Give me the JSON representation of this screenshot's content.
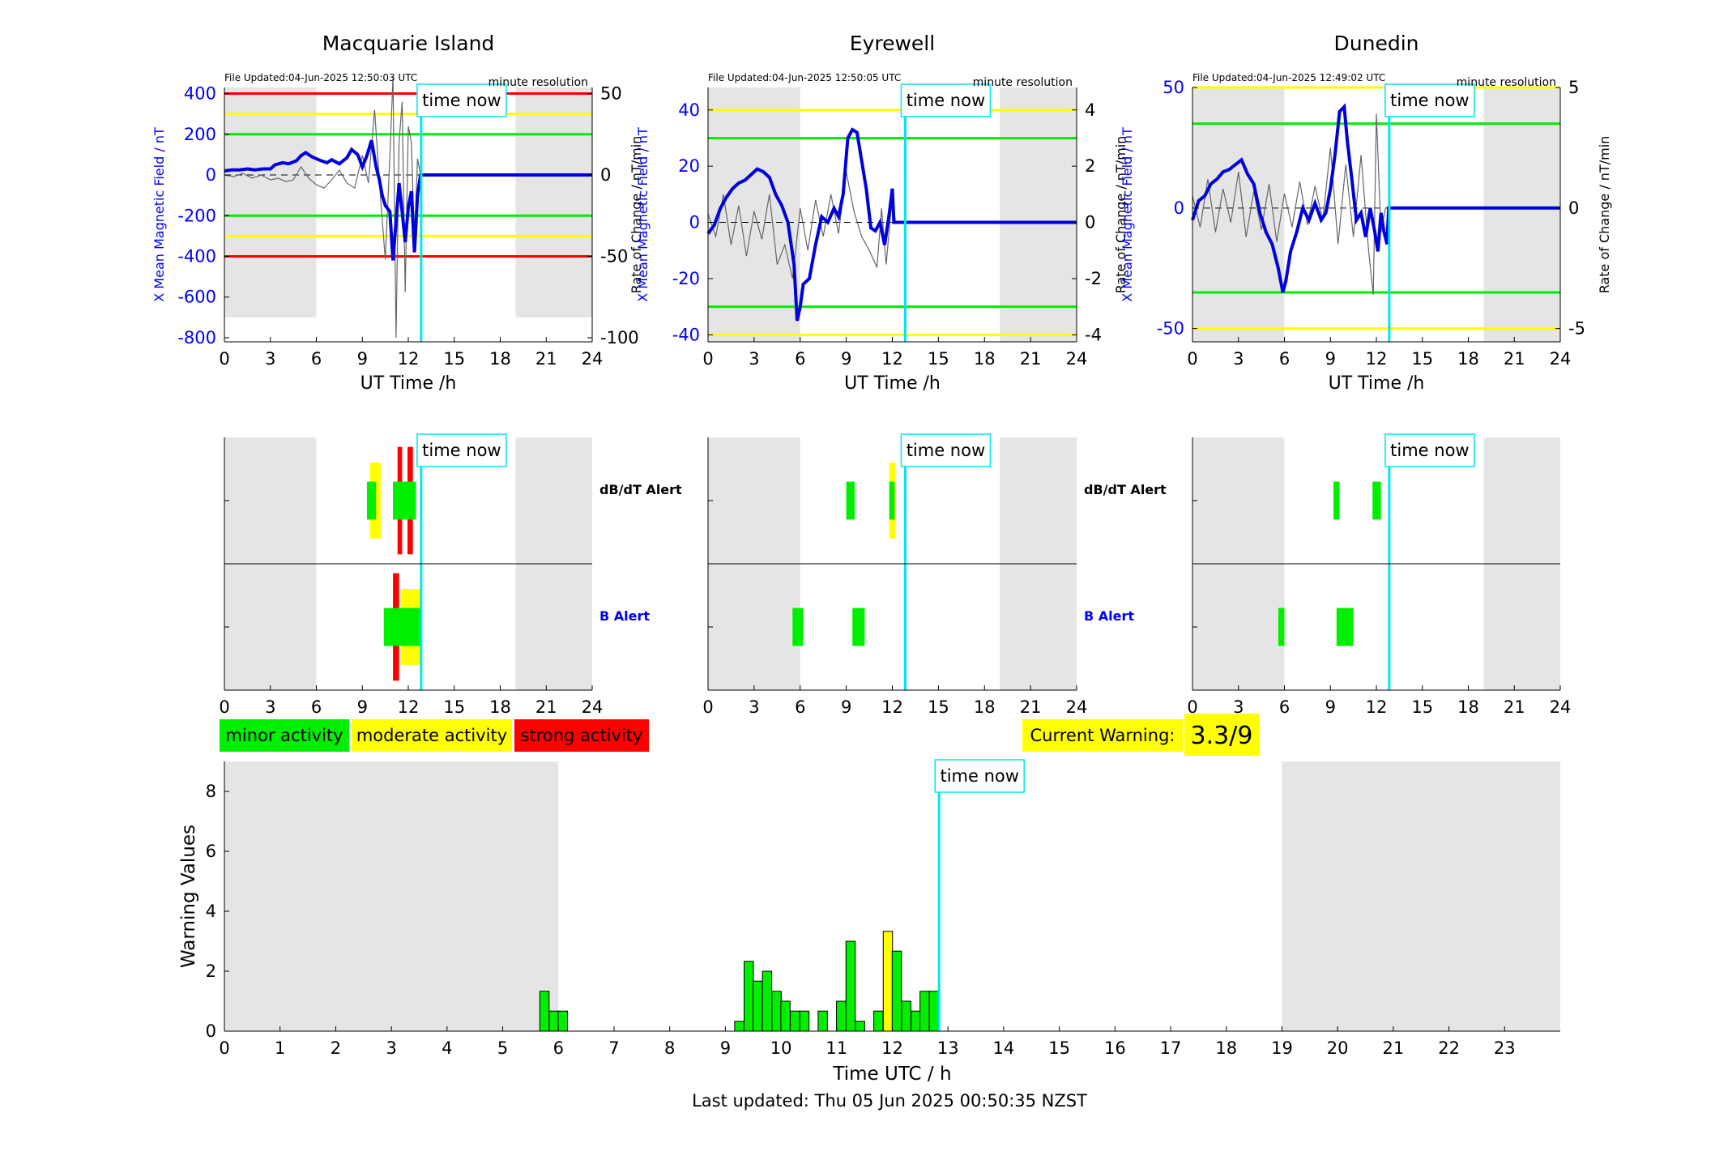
{
  "colors": {
    "minor": "#00ee00",
    "moderate": "#ffff00",
    "strong": "#ff0000",
    "night": "#e5e5e5",
    "timenow": "#00e5ee",
    "mean": "#0000dd",
    "rate": "#666666",
    "axis_blue": "#0000ff"
  },
  "time_now_label": "time now",
  "time_now_h": 12.84,
  "footer": {
    "last_updated": "Last updated: Thu 05 Jun 2025 00:50:35 NZST"
  },
  "legend": {
    "minor": "minor activity",
    "moderate": "moderate activity",
    "strong": "strong activity"
  },
  "current_warning": {
    "label": "Current Warning:",
    "value": "3.3/9"
  },
  "alert_labels": {
    "dbdt": "dB/dT Alert",
    "b": "B Alert"
  },
  "chart_data": [
    {
      "type": "line",
      "title": "Macquarie Island",
      "file_updated": "File Updated:04-Jun-2025 12:50:03 UTC",
      "resolution": "minute resolution",
      "xlabel": "UT Time /h",
      "ylabel_left": "X Mean Magnetic Field / nT",
      "ylabel_right": "Rate of Change / nT/min",
      "xlim": [
        0,
        24
      ],
      "xticks": [
        "0",
        "3",
        "6",
        "9",
        "12",
        "15",
        "18",
        "21",
        "24"
      ],
      "ylim_left": [
        -820,
        430
      ],
      "yticks_left": [
        "-800",
        "-600",
        "-400",
        "-200",
        "0",
        "200",
        "400"
      ],
      "ylim_right": [
        -102.5,
        53.75
      ],
      "yticks_right": [
        "-100",
        "-50",
        "0",
        "50"
      ],
      "night_bands": [
        [
          0,
          6
        ],
        [
          19,
          24
        ]
      ],
      "night_band_floor": -700,
      "thresholds": [
        {
          "level": "minor",
          "values": [
            200,
            -200
          ]
        },
        {
          "level": "moderate",
          "values": [
            300,
            -300
          ]
        },
        {
          "level": "strong",
          "values": [
            400,
            -400
          ]
        }
      ],
      "series": [
        {
          "role": "mean",
          "x": [
            0,
            0.5,
            1,
            1.5,
            2,
            2.5,
            3,
            3.3,
            3.8,
            4.2,
            4.7,
            5,
            5.3,
            5.7,
            6,
            6.3,
            6.7,
            7,
            7.5,
            8,
            8.3,
            8.7,
            9,
            9.3,
            9.6,
            9.9,
            10.1,
            10.3,
            10.5,
            10.8,
            11,
            11.2,
            11.4,
            11.6,
            11.8,
            12,
            12.2,
            12.4,
            12.6,
            12.8,
            24
          ],
          "y": [
            20,
            25,
            25,
            30,
            25,
            30,
            30,
            50,
            60,
            55,
            70,
            95,
            110,
            90,
            80,
            70,
            60,
            75,
            55,
            85,
            125,
            100,
            40,
            95,
            170,
            40,
            -20,
            -100,
            -150,
            -180,
            -420,
            -230,
            -40,
            -180,
            -330,
            -160,
            -80,
            -380,
            -100,
            0,
            0
          ]
        },
        {
          "role": "rate",
          "x": [
            0,
            0.6,
            1.2,
            1.8,
            2.4,
            3,
            3.5,
            4,
            4.5,
            5,
            5.5,
            6,
            6.5,
            7,
            7.5,
            8,
            8.5,
            9,
            9.4,
            9.8,
            10.2,
            10.5,
            10.8,
            11,
            11.2,
            11.4,
            11.6,
            11.8,
            12,
            12.2,
            12.4,
            12.6,
            12.8
          ],
          "y": [
            0,
            -1,
            1,
            -2,
            0,
            -3,
            -2,
            -4,
            -3,
            5,
            -2,
            -6,
            -8,
            -3,
            3,
            -5,
            -8,
            12,
            -5,
            40,
            -15,
            -52,
            12,
            60,
            -100,
            20,
            45,
            -72,
            30,
            20,
            -40,
            10,
            0
          ]
        }
      ]
    },
    {
      "type": "line",
      "title": "Eyrewell",
      "file_updated": "File Updated:04-Jun-2025 12:50:05 UTC",
      "resolution": "minute resolution",
      "xlabel": "UT Time /h",
      "ylabel_left": "X Mean Magnetic Field / nT",
      "ylabel_right": "Rate of Change / nT/min",
      "xlim": [
        0,
        24
      ],
      "xticks": [
        "0",
        "3",
        "6",
        "9",
        "12",
        "15",
        "18",
        "21",
        "24"
      ],
      "ylim_left": [
        -42.5,
        48
      ],
      "yticks_left": [
        "-40",
        "-20",
        "0",
        "20",
        "40"
      ],
      "ylim_right": [
        -4.25,
        4.8
      ],
      "yticks_right": [
        "-4",
        "-2",
        "0",
        "2",
        "4"
      ],
      "night_bands": [
        [
          0,
          6
        ],
        [
          19,
          24
        ]
      ],
      "night_band_floor": -42.5,
      "thresholds": [
        {
          "level": "minor",
          "values": [
            30,
            -30
          ]
        },
        {
          "level": "moderate",
          "values": [
            40,
            -40
          ]
        }
      ],
      "series": [
        {
          "role": "mean",
          "x": [
            0,
            0.4,
            0.8,
            1.2,
            1.6,
            2,
            2.4,
            2.8,
            3.2,
            3.6,
            4,
            4.4,
            4.8,
            5.2,
            5.6,
            5.8,
            6,
            6.2,
            6.6,
            7,
            7.4,
            7.8,
            8.2,
            8.5,
            8.8,
            9.1,
            9.4,
            9.7,
            10,
            10.3,
            10.6,
            10.9,
            11.2,
            11.5,
            11.8,
            12,
            12.1,
            24
          ],
          "y": [
            -4,
            -1,
            5,
            9,
            12,
            14,
            15,
            17,
            19,
            18,
            16,
            10,
            6,
            0,
            -15,
            -35,
            -30,
            -22,
            -20,
            -8,
            2,
            0,
            5,
            2,
            10,
            30,
            33,
            32,
            22,
            12,
            -2,
            -3,
            0,
            -8,
            3,
            12,
            0,
            0
          ]
        },
        {
          "role": "rate",
          "x": [
            0,
            0.5,
            1,
            1.5,
            2,
            2.5,
            3,
            3.5,
            4,
            4.5,
            5,
            5.5,
            6,
            6.5,
            7,
            7.5,
            8,
            8.5,
            9,
            9.5,
            10,
            10.5,
            11,
            11.3,
            11.6,
            12,
            12.2
          ],
          "y": [
            0.3,
            -0.5,
            1,
            -0.8,
            0.6,
            -1.2,
            0.4,
            -0.6,
            1,
            -1.5,
            -0.8,
            -2,
            0.5,
            -1,
            0.8,
            -0.5,
            1,
            -0.4,
            1.8,
            0.4,
            -0.5,
            -1,
            -1.6,
            0.5,
            -1.5,
            1,
            0
          ]
        }
      ]
    },
    {
      "type": "line",
      "title": "Dunedin",
      "file_updated": "File Updated:04-Jun-2025 12:49:02 UTC",
      "resolution": "minute resolution",
      "xlabel": "UT Time /h",
      "ylabel_left": "X Mean Magnetic Field / nT",
      "ylabel_right": "Rate of Change / nT/min",
      "xlim": [
        0,
        24
      ],
      "xticks": [
        "0",
        "3",
        "6",
        "9",
        "12",
        "15",
        "18",
        "21",
        "24"
      ],
      "ylim_left": [
        -55.5,
        50
      ],
      "yticks_left": [
        "-50",
        "0",
        "50"
      ],
      "ylim_right": [
        -5.55,
        5
      ],
      "yticks_right": [
        "-5",
        "0",
        "5"
      ],
      "night_bands": [
        [
          0,
          6
        ],
        [
          19,
          24
        ]
      ],
      "night_band_floor": -55.5,
      "thresholds": [
        {
          "level": "minor",
          "values": [
            35,
            -35
          ]
        },
        {
          "level": "moderate",
          "values": [
            50,
            -50
          ]
        }
      ],
      "series": [
        {
          "role": "mean",
          "x": [
            0,
            0.4,
            0.8,
            1.2,
            1.6,
            2,
            2.4,
            2.8,
            3.2,
            3.6,
            4,
            4.4,
            4.8,
            5.2,
            5.6,
            5.9,
            6.1,
            6.4,
            6.8,
            7.2,
            7.6,
            8,
            8.4,
            8.7,
            9,
            9.3,
            9.6,
            9.9,
            10.1,
            10.4,
            10.7,
            11,
            11.3,
            11.6,
            11.9,
            12.1,
            12.3,
            12.5,
            12.7,
            12.8,
            24
          ],
          "y": [
            -5,
            3,
            5,
            10,
            12,
            15,
            16,
            18,
            20,
            14,
            10,
            -2,
            -10,
            -15,
            -25,
            -35,
            -30,
            -18,
            -10,
            0,
            -5,
            2,
            -5,
            -2,
            8,
            22,
            40,
            42,
            28,
            12,
            -5,
            -2,
            -12,
            0,
            -10,
            -18,
            -2,
            -10,
            -15,
            0,
            0
          ]
        },
        {
          "role": "rate",
          "x": [
            0,
            0.5,
            1,
            1.5,
            2,
            2.5,
            3,
            3.5,
            4,
            4.5,
            5,
            5.5,
            6,
            6.5,
            7,
            7.5,
            8,
            8.5,
            9,
            9.5,
            10,
            10.5,
            11,
            11.5,
            11.8,
            12,
            12.3,
            12.6
          ],
          "y": [
            0.5,
            -0.8,
            1.2,
            -1,
            0.8,
            -0.6,
            1.5,
            -1.2,
            0.7,
            -0.9,
            1,
            -1.4,
            0.6,
            -0.8,
            1.1,
            -0.7,
            0.9,
            -0.5,
            2.5,
            -1.5,
            1.8,
            -1.2,
            2.2,
            -1.8,
            -3.6,
            3.9,
            -1,
            0
          ]
        }
      ]
    },
    {
      "type": "bar",
      "title": "",
      "xlabel": "Time UTC / h",
      "ylabel": "Warning Values",
      "xlim": [
        0,
        24
      ],
      "xticks": [
        "0",
        "1",
        "2",
        "3",
        "4",
        "5",
        "6",
        "7",
        "8",
        "9",
        "10",
        "11",
        "12",
        "13",
        "14",
        "15",
        "16",
        "17",
        "18",
        "19",
        "20",
        "21",
        "22",
        "23"
      ],
      "ylim": [
        0,
        9
      ],
      "yticks": [
        "0",
        "2",
        "4",
        "6",
        "8"
      ],
      "night_bands": [
        [
          0,
          6
        ],
        [
          19,
          24
        ]
      ],
      "bar_width_h": 0.16667,
      "x": [
        5.75,
        5.92,
        6.08,
        9.25,
        9.42,
        9.58,
        9.75,
        9.92,
        10.08,
        10.25,
        10.42,
        10.75,
        11.08,
        11.25,
        11.42,
        11.75,
        11.92,
        12.08,
        12.25,
        12.42,
        12.58,
        12.75
      ],
      "values": [
        1.33,
        0.67,
        0.67,
        0.33,
        2.33,
        1.67,
        2.0,
        1.33,
        1.0,
        0.67,
        0.67,
        0.67,
        1.0,
        3.0,
        0.33,
        0.67,
        3.33,
        2.67,
        1.0,
        0.67,
        1.33,
        1.33
      ],
      "levels": [
        "minor",
        "minor",
        "minor",
        "minor",
        "minor",
        "minor",
        "minor",
        "minor",
        "minor",
        "minor",
        "minor",
        "minor",
        "minor",
        "minor",
        "minor",
        "minor",
        "moderate",
        "minor",
        "minor",
        "minor",
        "minor",
        "minor"
      ]
    }
  ],
  "alert_data": [
    {
      "station": "Macquarie Island",
      "dbdt": [
        {
          "x0": 9.5,
          "x1": 10.2,
          "level": "moderate",
          "ext": 0.6
        },
        {
          "x0": 11.3,
          "x1": 11.6,
          "level": "strong",
          "ext": 0.85
        },
        {
          "x0": 11.95,
          "x1": 12.3,
          "level": "strong",
          "ext": 0.85
        },
        {
          "x0": 9.3,
          "x1": 9.9,
          "level": "minor",
          "ext": 0.3
        },
        {
          "x0": 11.0,
          "x1": 12.5,
          "level": "minor",
          "ext": 0.3
        }
      ],
      "b": [
        {
          "x0": 11.0,
          "x1": 11.4,
          "level": "strong",
          "ext": 0.85
        },
        {
          "x0": 11.5,
          "x1": 12.9,
          "level": "moderate",
          "ext": 0.6
        },
        {
          "x0": 10.4,
          "x1": 12.9,
          "level": "minor",
          "ext": 0.3
        }
      ]
    },
    {
      "station": "Eyrewell",
      "dbdt": [
        {
          "x0": 11.8,
          "x1": 12.2,
          "level": "moderate",
          "ext": 0.6
        },
        {
          "x0": 9.0,
          "x1": 9.55,
          "level": "minor",
          "ext": 0.3
        },
        {
          "x0": 11.8,
          "x1": 12.15,
          "level": "minor",
          "ext": 0.3
        }
      ],
      "b": [
        {
          "x0": 5.5,
          "x1": 6.2,
          "level": "minor",
          "ext": 0.3
        },
        {
          "x0": 9.4,
          "x1": 10.2,
          "level": "minor",
          "ext": 0.3
        }
      ]
    },
    {
      "station": "Dunedin",
      "dbdt": [
        {
          "x0": 9.2,
          "x1": 9.6,
          "level": "minor",
          "ext": 0.3
        },
        {
          "x0": 11.75,
          "x1": 12.3,
          "level": "minor",
          "ext": 0.3
        }
      ],
      "b": [
        {
          "x0": 5.6,
          "x1": 6.0,
          "level": "minor",
          "ext": 0.3
        },
        {
          "x0": 9.4,
          "x1": 10.5,
          "level": "minor",
          "ext": 0.3
        }
      ]
    }
  ]
}
